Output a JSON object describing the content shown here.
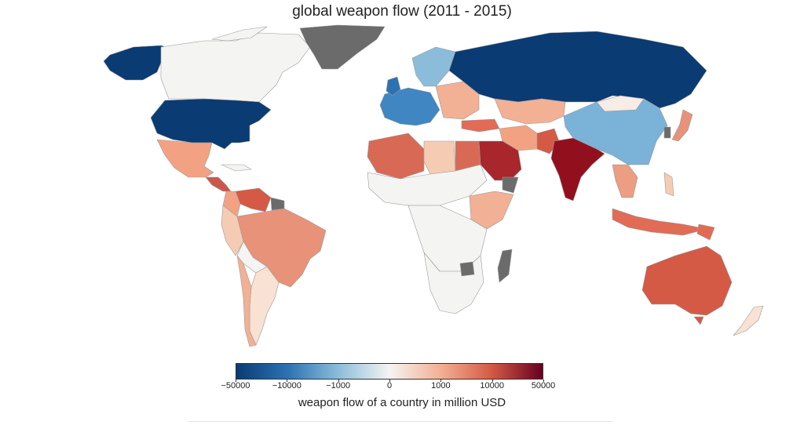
{
  "title": "global weapon flow (2011 - 2015)",
  "colorbar": {
    "label": "weapon flow of a country in million USD",
    "ticks": [
      "−50000",
      "−10000",
      "−1000",
      "0",
      "1000",
      "10000",
      "50000"
    ],
    "colors": [
      "#0a3b73",
      "#2c72b3",
      "#8bbddb",
      "#f4f4f2",
      "#f2b094",
      "#d45a46",
      "#67001f"
    ]
  },
  "map": {
    "no_data_color": "#6b6b6b",
    "border_color": "#9a9a9a"
  },
  "chart_data": {
    "type": "choropleth",
    "scale": "symlog",
    "range": [
      -50000,
      50000
    ],
    "regions": [
      {
        "name": "USA",
        "class": "< -50000"
      },
      {
        "name": "Russia",
        "class": "< -50000"
      },
      {
        "name": "Canada",
        "class": "~0"
      },
      {
        "name": "China",
        "class": "-1000 to -10000"
      },
      {
        "name": "Western Europe",
        "class": "-1000 to -10000"
      },
      {
        "name": "India",
        "class": "10000 to 50000"
      },
      {
        "name": "Saudi Arabia",
        "class": "10000 to 50000"
      },
      {
        "name": "Australia",
        "class": "1000 to 10000"
      },
      {
        "name": "Brazil",
        "class": "~1000"
      },
      {
        "name": "Algeria",
        "class": "1000 to 10000"
      },
      {
        "name": "Greenland",
        "class": "no data"
      }
    ]
  }
}
